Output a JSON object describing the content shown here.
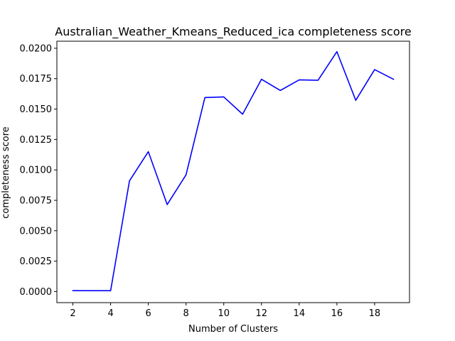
{
  "chart_data": {
    "type": "line",
    "title": "Australian_Weather_Kmeans_Reduced_ica completeness score",
    "xlabel": "Number of Clusters",
    "ylabel": "completeness score",
    "x": [
      2,
      3,
      4,
      5,
      6,
      7,
      8,
      9,
      10,
      11,
      12,
      13,
      14,
      15,
      16,
      17,
      18,
      19
    ],
    "series": [
      {
        "color": "#0000ff",
        "values": [
          8e-05,
          7e-05,
          7e-05,
          0.0091,
          0.0115,
          0.00715,
          0.0096,
          0.01595,
          0.016,
          0.01458,
          0.01745,
          0.01653,
          0.0174,
          0.01737,
          0.01972,
          0.01572,
          0.01825,
          0.01745
        ]
      }
    ],
    "xlim": [
      1.15,
      19.85
    ],
    "ylim": [
      -0.00091,
      0.02058
    ],
    "xticks": [
      2,
      4,
      6,
      8,
      10,
      12,
      14,
      16,
      18
    ],
    "yticks": [
      0.0,
      0.0025,
      0.005,
      0.0075,
      0.01,
      0.0125,
      0.015,
      0.0175,
      0.02
    ],
    "xtick_labels": [
      "2",
      "4",
      "6",
      "8",
      "10",
      "12",
      "14",
      "16",
      "18"
    ],
    "ytick_labels": [
      "0.0000",
      "0.0025",
      "0.0050",
      "0.0075",
      "0.0100",
      "0.0125",
      "0.0150",
      "0.0175",
      "0.0200"
    ],
    "grid": false,
    "legend": "none"
  }
}
